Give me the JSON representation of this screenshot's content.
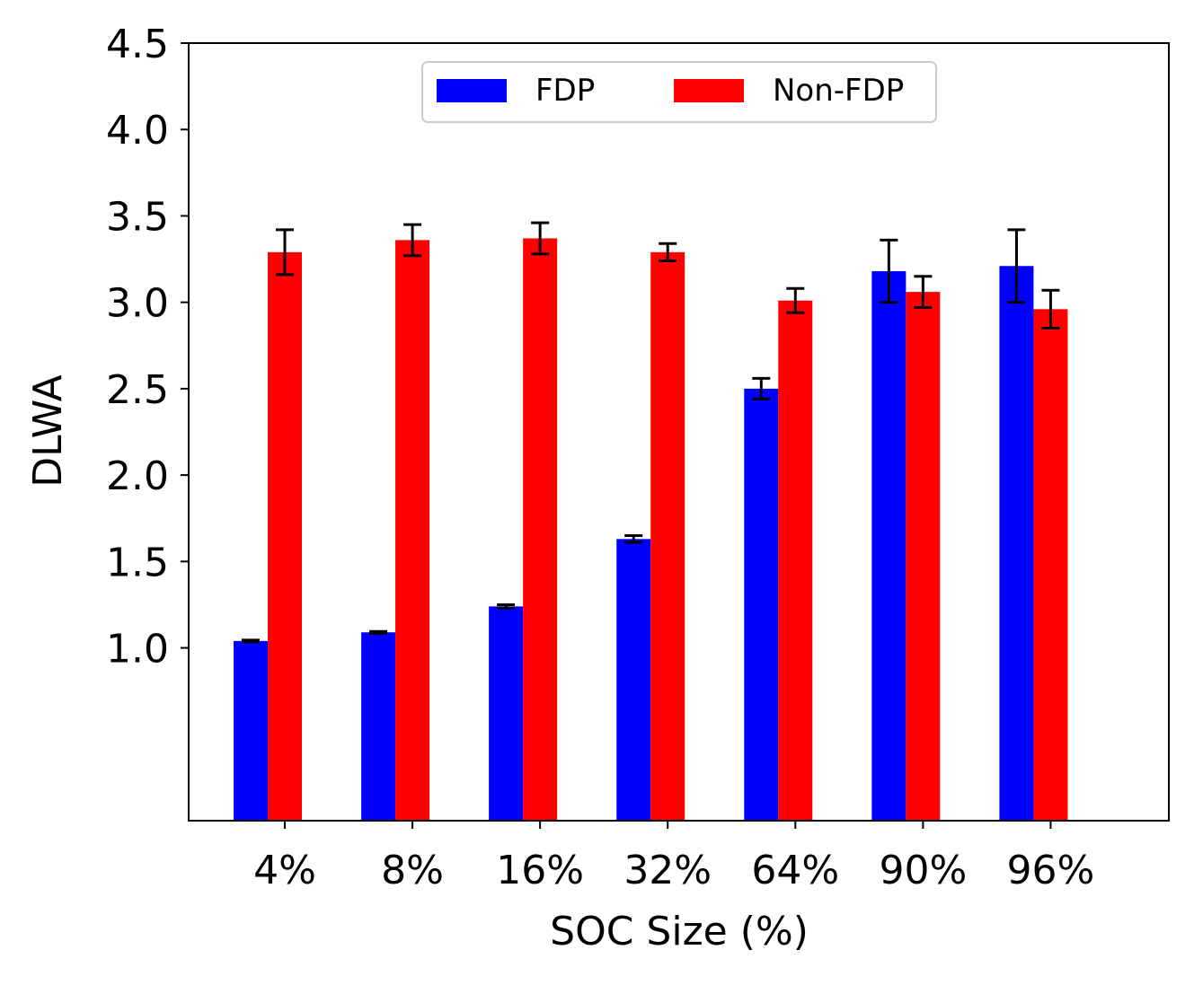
{
  "chart_data": {
    "type": "bar",
    "title": "",
    "xlabel": "SOC Size (%)",
    "ylabel": "DLWA",
    "categories": [
      "4%",
      "8%",
      "16%",
      "32%",
      "64%",
      "90%",
      "96%"
    ],
    "ylim": [
      0.0,
      4.5
    ],
    "yticks": [
      "1.0",
      "1.5",
      "2.0",
      "2.5",
      "3.0",
      "3.5",
      "4.0",
      "4.5"
    ],
    "ytick_values": [
      1.0,
      1.5,
      2.0,
      2.5,
      3.0,
      3.5,
      4.0,
      4.5
    ],
    "legend_position": "top-center",
    "grid": false,
    "series": [
      {
        "name": "FDP",
        "color": "#0000ff",
        "values": [
          1.04,
          1.09,
          1.24,
          1.63,
          2.5,
          3.18,
          3.21
        ],
        "errors": [
          0.005,
          0.005,
          0.01,
          0.02,
          0.06,
          0.18,
          0.21
        ]
      },
      {
        "name": "Non-FDP",
        "color": "#ff0000",
        "values": [
          3.29,
          3.36,
          3.37,
          3.29,
          3.01,
          3.06,
          2.96
        ],
        "errors": [
          0.13,
          0.09,
          0.09,
          0.05,
          0.07,
          0.09,
          0.11
        ]
      }
    ]
  }
}
